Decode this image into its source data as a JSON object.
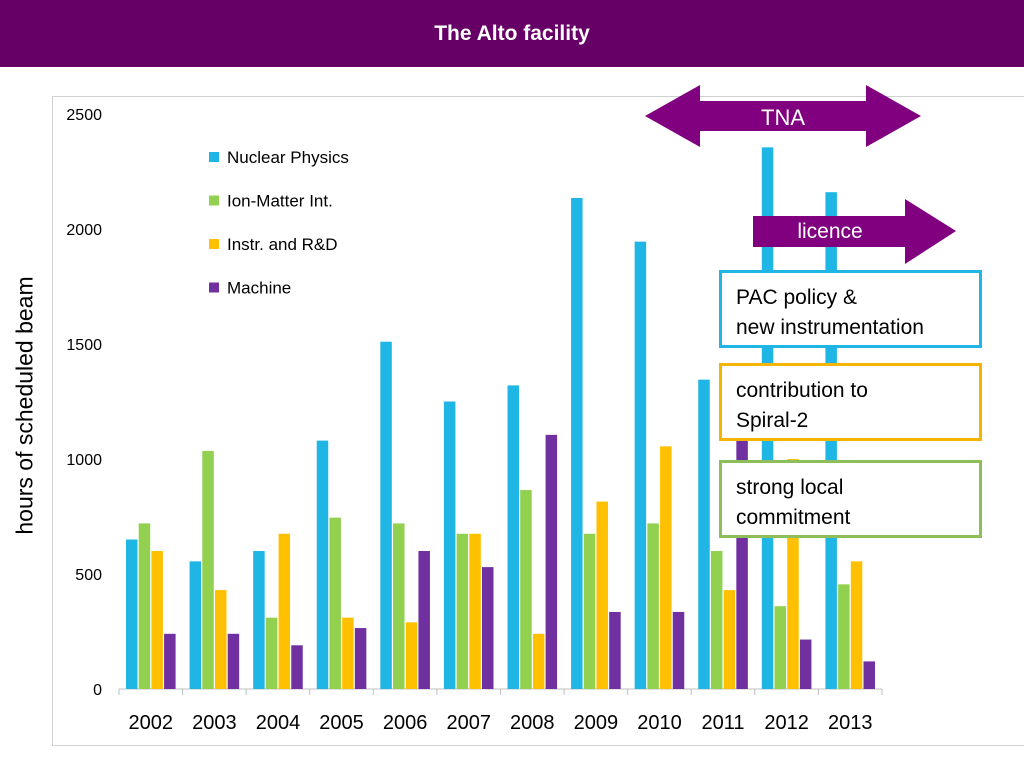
{
  "header": {
    "title": "The Alto facility"
  },
  "colors": {
    "header_bg": "#660066",
    "arrow": "#800080",
    "nuclear": "#1FB6E6",
    "ion": "#92D050",
    "instr": "#FFC000",
    "machine": "#7030A0"
  },
  "annotations": {
    "tna": "TNA",
    "licence": "licence",
    "box1": {
      "line1": "PAC policy &",
      "line2": "new instrumentation",
      "border": "#1FB6E6"
    },
    "box2": {
      "line1": "contribution to",
      "line2": "Spiral-2",
      "border": "#F5B400"
    },
    "box3": {
      "line1": "strong local",
      "line2": "commitment",
      "border": "#8CBF5A"
    }
  },
  "chart_data": {
    "type": "bar",
    "categories": [
      "2002",
      "2003",
      "2004",
      "2005",
      "2006",
      "2007",
      "2008",
      "2009",
      "2010",
      "2011",
      "2012",
      "2013"
    ],
    "series": [
      {
        "name": "Nuclear Physics",
        "color": "#1FB6E6",
        "values": [
          650,
          555,
          600,
          1080,
          1510,
          1250,
          1320,
          2135,
          1945,
          1345,
          2355,
          2160
        ]
      },
      {
        "name": "Ion-Matter Int.",
        "color": "#92D050",
        "values": [
          720,
          1035,
          310,
          745,
          720,
          675,
          865,
          675,
          720,
          600,
          360,
          455
        ]
      },
      {
        "name": "Instr. and R&D",
        "color": "#FFC000",
        "values": [
          600,
          430,
          675,
          310,
          290,
          675,
          240,
          815,
          1055,
          430,
          1000,
          555
        ]
      },
      {
        "name": "Machine",
        "color": "#7030A0",
        "values": [
          240,
          240,
          190,
          265,
          600,
          530,
          1105,
          335,
          335,
          1100,
          215,
          120
        ]
      }
    ],
    "ylabel": "hours of scheduled beam",
    "ylim": [
      0,
      2500
    ],
    "yticks": [
      "0",
      "500",
      "1000",
      "1500",
      "2000",
      "2500"
    ],
    "grid": false,
    "legend_position": "top-left"
  }
}
